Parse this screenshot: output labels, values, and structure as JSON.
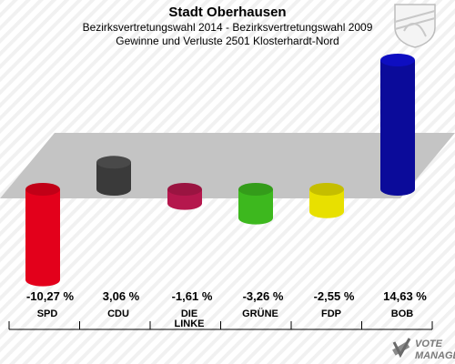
{
  "header": {
    "title": "Stadt Oberhausen",
    "subtitle1": "Bezirksvertretungswahl 2014 - Bezirksvertretungswahl 2009",
    "subtitle2": "Gewinne und Verluste 2501 Klosterhardt-Nord"
  },
  "watermark": {
    "line1": "VOTE",
    "line2": "MANAGER"
  },
  "chart_data": {
    "type": "bar",
    "title": "Stadt Oberhausen",
    "subtitle": "Bezirksvertretungswahl 2014 - Bezirksvertretungswahl 2009 / Gewinne und Verluste 2501 Klosterhardt-Nord",
    "categories": [
      "SPD",
      "CDU",
      "DIE LINKE",
      "GRÜNE",
      "FDP",
      "BOB"
    ],
    "values": [
      -10.27,
      3.06,
      -1.61,
      -3.26,
      -2.55,
      14.63
    ],
    "value_labels": [
      "-10,27 %",
      "3,06 %",
      "-1,61 %",
      "-3,26 %",
      "-2,55 %",
      "14,63 %"
    ],
    "colors": [
      "#e3001b",
      "#3a3a3a",
      "#b5174d",
      "#3db81e",
      "#e8e000",
      "#0b0b9a"
    ],
    "unit": "%",
    "xlabel": "",
    "ylabel": "",
    "grid": false,
    "legend": "none"
  }
}
